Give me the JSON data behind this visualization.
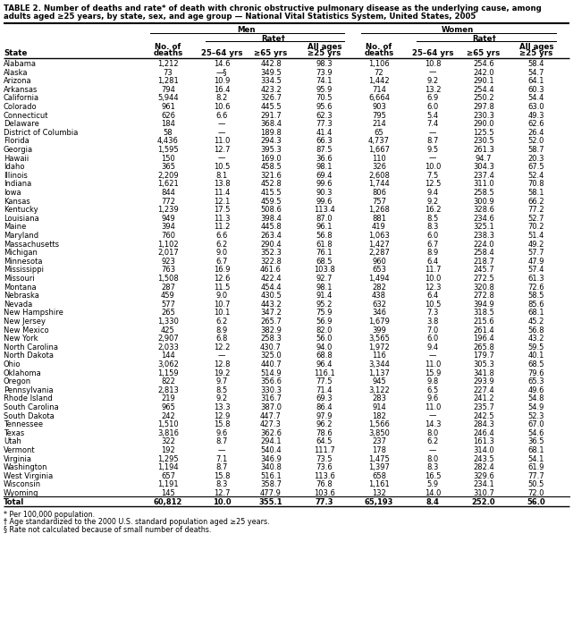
{
  "title_line1": "TABLE 2. Number of deaths and rate* of death with chronic obstructive pulmonary disease as the underlying cause, among",
  "title_line2": "adults aged ≥25 years, by state, sex, and age group — National Vital Statistics System, United States, 2005",
  "footnotes": [
    "* Per 100,000 population.",
    "† Age standardized to the 2000 U.S. standard population aged ≥25 years.",
    "§ Rate not calculated because of small number of deaths."
  ],
  "rows": [
    [
      "Alabama",
      "1,212",
      "14.6",
      "442.8",
      "98.3",
      "1,106",
      "10.8",
      "254.6",
      "58.4"
    ],
    [
      "Alaska",
      "73",
      "—§",
      "349.5",
      "73.9",
      "72",
      "—",
      "242.0",
      "54.7"
    ],
    [
      "Arizona",
      "1,281",
      "10.9",
      "334.5",
      "74.1",
      "1,442",
      "9.2",
      "290.1",
      "64.1"
    ],
    [
      "Arkansas",
      "794",
      "16.4",
      "423.2",
      "95.9",
      "714",
      "13.2",
      "254.4",
      "60.3"
    ],
    [
      "California",
      "5,944",
      "8.2",
      "326.7",
      "70.5",
      "6,664",
      "6.9",
      "250.2",
      "54.4"
    ],
    [
      "Colorado",
      "961",
      "10.6",
      "445.5",
      "95.6",
      "903",
      "6.0",
      "297.8",
      "63.0"
    ],
    [
      "Connecticut",
      "626",
      "6.6",
      "291.7",
      "62.3",
      "795",
      "5.4",
      "230.3",
      "49.3"
    ],
    [
      "Delaware",
      "184",
      "—",
      "368.4",
      "77.3",
      "214",
      "7.4",
      "290.0",
      "62.6"
    ],
    [
      "District of Columbia",
      "58",
      "—",
      "189.8",
      "41.4",
      "65",
      "—",
      "125.5",
      "26.4"
    ],
    [
      "Florida",
      "4,436",
      "11.0",
      "294.3",
      "66.3",
      "4,737",
      "8.7",
      "230.5",
      "52.0"
    ],
    [
      "Georgia",
      "1,595",
      "12.7",
      "395.3",
      "87.5",
      "1,667",
      "9.5",
      "261.3",
      "58.7"
    ],
    [
      "Hawaii",
      "150",
      "—",
      "169.0",
      "36.6",
      "110",
      "—",
      "94.7",
      "20.3"
    ],
    [
      "Idaho",
      "365",
      "10.5",
      "458.5",
      "98.1",
      "326",
      "10.0",
      "304.3",
      "67.5"
    ],
    [
      "Illinois",
      "2,209",
      "8.1",
      "321.6",
      "69.4",
      "2,608",
      "7.5",
      "237.4",
      "52.4"
    ],
    [
      "Indiana",
      "1,621",
      "13.8",
      "452.8",
      "99.6",
      "1,744",
      "12.5",
      "311.0",
      "70.8"
    ],
    [
      "Iowa",
      "844",
      "11.4",
      "415.5",
      "90.3",
      "806",
      "9.4",
      "258.5",
      "58.1"
    ],
    [
      "Kansas",
      "772",
      "12.1",
      "459.5",
      "99.6",
      "757",
      "9.2",
      "300.9",
      "66.2"
    ],
    [
      "Kentucky",
      "1,239",
      "17.5",
      "508.6",
      "113.4",
      "1,268",
      "16.2",
      "328.6",
      "77.2"
    ],
    [
      "Louisiana",
      "949",
      "11.3",
      "398.4",
      "87.0",
      "881",
      "8.5",
      "234.6",
      "52.7"
    ],
    [
      "Maine",
      "394",
      "11.2",
      "445.8",
      "96.1",
      "419",
      "8.3",
      "325.1",
      "70.2"
    ],
    [
      "Maryland",
      "760",
      "6.6",
      "263.4",
      "56.8",
      "1,063",
      "6.0",
      "238.3",
      "51.4"
    ],
    [
      "Massachusetts",
      "1,102",
      "6.2",
      "290.4",
      "61.8",
      "1,427",
      "6.7",
      "224.0",
      "49.2"
    ],
    [
      "Michigan",
      "2,017",
      "9.0",
      "352.3",
      "76.1",
      "2,287",
      "8.9",
      "258.4",
      "57.7"
    ],
    [
      "Minnesota",
      "923",
      "6.7",
      "322.8",
      "68.5",
      "960",
      "6.4",
      "218.7",
      "47.9"
    ],
    [
      "Mississippi",
      "763",
      "16.9",
      "461.6",
      "103.8",
      "653",
      "11.7",
      "245.7",
      "57.4"
    ],
    [
      "Missouri",
      "1,508",
      "12.6",
      "422.4",
      "92.7",
      "1,494",
      "10.0",
      "272.5",
      "61.3"
    ],
    [
      "Montana",
      "287",
      "11.5",
      "454.4",
      "98.1",
      "282",
      "12.3",
      "320.8",
      "72.6"
    ],
    [
      "Nebraska",
      "459",
      "9.0",
      "430.5",
      "91.4",
      "438",
      "6.4",
      "272.8",
      "58.5"
    ],
    [
      "Nevada",
      "577",
      "10.7",
      "443.2",
      "95.2",
      "632",
      "10.5",
      "394.9",
      "85.6"
    ],
    [
      "New Hampshire",
      "265",
      "10.1",
      "347.2",
      "75.9",
      "346",
      "7.3",
      "318.5",
      "68.1"
    ],
    [
      "New Jersey",
      "1,330",
      "6.2",
      "265.7",
      "56.9",
      "1,679",
      "3.8",
      "215.6",
      "45.2"
    ],
    [
      "New Mexico",
      "425",
      "8.9",
      "382.9",
      "82.0",
      "399",
      "7.0",
      "261.4",
      "56.8"
    ],
    [
      "New York",
      "2,907",
      "6.8",
      "258.3",
      "56.0",
      "3,565",
      "6.0",
      "196.4",
      "43.2"
    ],
    [
      "North Carolina",
      "2,033",
      "12.2",
      "430.7",
      "94.0",
      "1,972",
      "9.4",
      "265.8",
      "59.5"
    ],
    [
      "North Dakota",
      "144",
      "—",
      "325.0",
      "68.8",
      "116",
      "—",
      "179.7",
      "40.1"
    ],
    [
      "Ohio",
      "3,062",
      "12.8",
      "440.7",
      "96.4",
      "3,344",
      "11.0",
      "305.3",
      "68.5"
    ],
    [
      "Oklahoma",
      "1,159",
      "19.2",
      "514.9",
      "116.1",
      "1,137",
      "15.9",
      "341.8",
      "79.6"
    ],
    [
      "Oregon",
      "822",
      "9.7",
      "356.6",
      "77.5",
      "945",
      "9.8",
      "293.9",
      "65.3"
    ],
    [
      "Pennsylvania",
      "2,813",
      "8.5",
      "330.3",
      "71.4",
      "3,122",
      "6.5",
      "227.4",
      "49.6"
    ],
    [
      "Rhode Island",
      "219",
      "9.2",
      "316.7",
      "69.3",
      "283",
      "9.6",
      "241.2",
      "54.8"
    ],
    [
      "South Carolina",
      "965",
      "13.3",
      "387.0",
      "86.4",
      "914",
      "11.0",
      "235.7",
      "54.9"
    ],
    [
      "South Dakota",
      "242",
      "12.9",
      "447.7",
      "97.9",
      "182",
      "—",
      "242.5",
      "52.3"
    ],
    [
      "Tennessee",
      "1,510",
      "15.8",
      "427.3",
      "96.2",
      "1,566",
      "14.3",
      "284.3",
      "67.0"
    ],
    [
      "Texas",
      "3,816",
      "9.6",
      "362.6",
      "78.6",
      "3,850",
      "8.0",
      "246.4",
      "54.6"
    ],
    [
      "Utah",
      "322",
      "8.7",
      "294.1",
      "64.5",
      "237",
      "6.2",
      "161.3",
      "36.5"
    ],
    [
      "Vermont",
      "192",
      "—",
      "540.4",
      "111.7",
      "178",
      "—",
      "314.0",
      "68.1"
    ],
    [
      "Virginia",
      "1,295",
      "7.1",
      "346.9",
      "73.5",
      "1,475",
      "8.0",
      "243.5",
      "54.1"
    ],
    [
      "Washington",
      "1,194",
      "8.7",
      "340.8",
      "73.6",
      "1,397",
      "8.3",
      "282.4",
      "61.9"
    ],
    [
      "West Virginia",
      "657",
      "15.8",
      "516.1",
      "113.6",
      "658",
      "16.5",
      "329.6",
      "77.7"
    ],
    [
      "Wisconsin",
      "1,191",
      "8.3",
      "358.7",
      "76.8",
      "1,161",
      "5.9",
      "234.1",
      "50.5"
    ],
    [
      "Wyoming",
      "145",
      "12.7",
      "477.9",
      "103.6",
      "132",
      "14.0",
      "310.7",
      "72.0"
    ],
    [
      "Total",
      "60,812",
      "10.0",
      "355.1",
      "77.3",
      "65,193",
      "8.4",
      "252.0",
      "56.0"
    ]
  ]
}
